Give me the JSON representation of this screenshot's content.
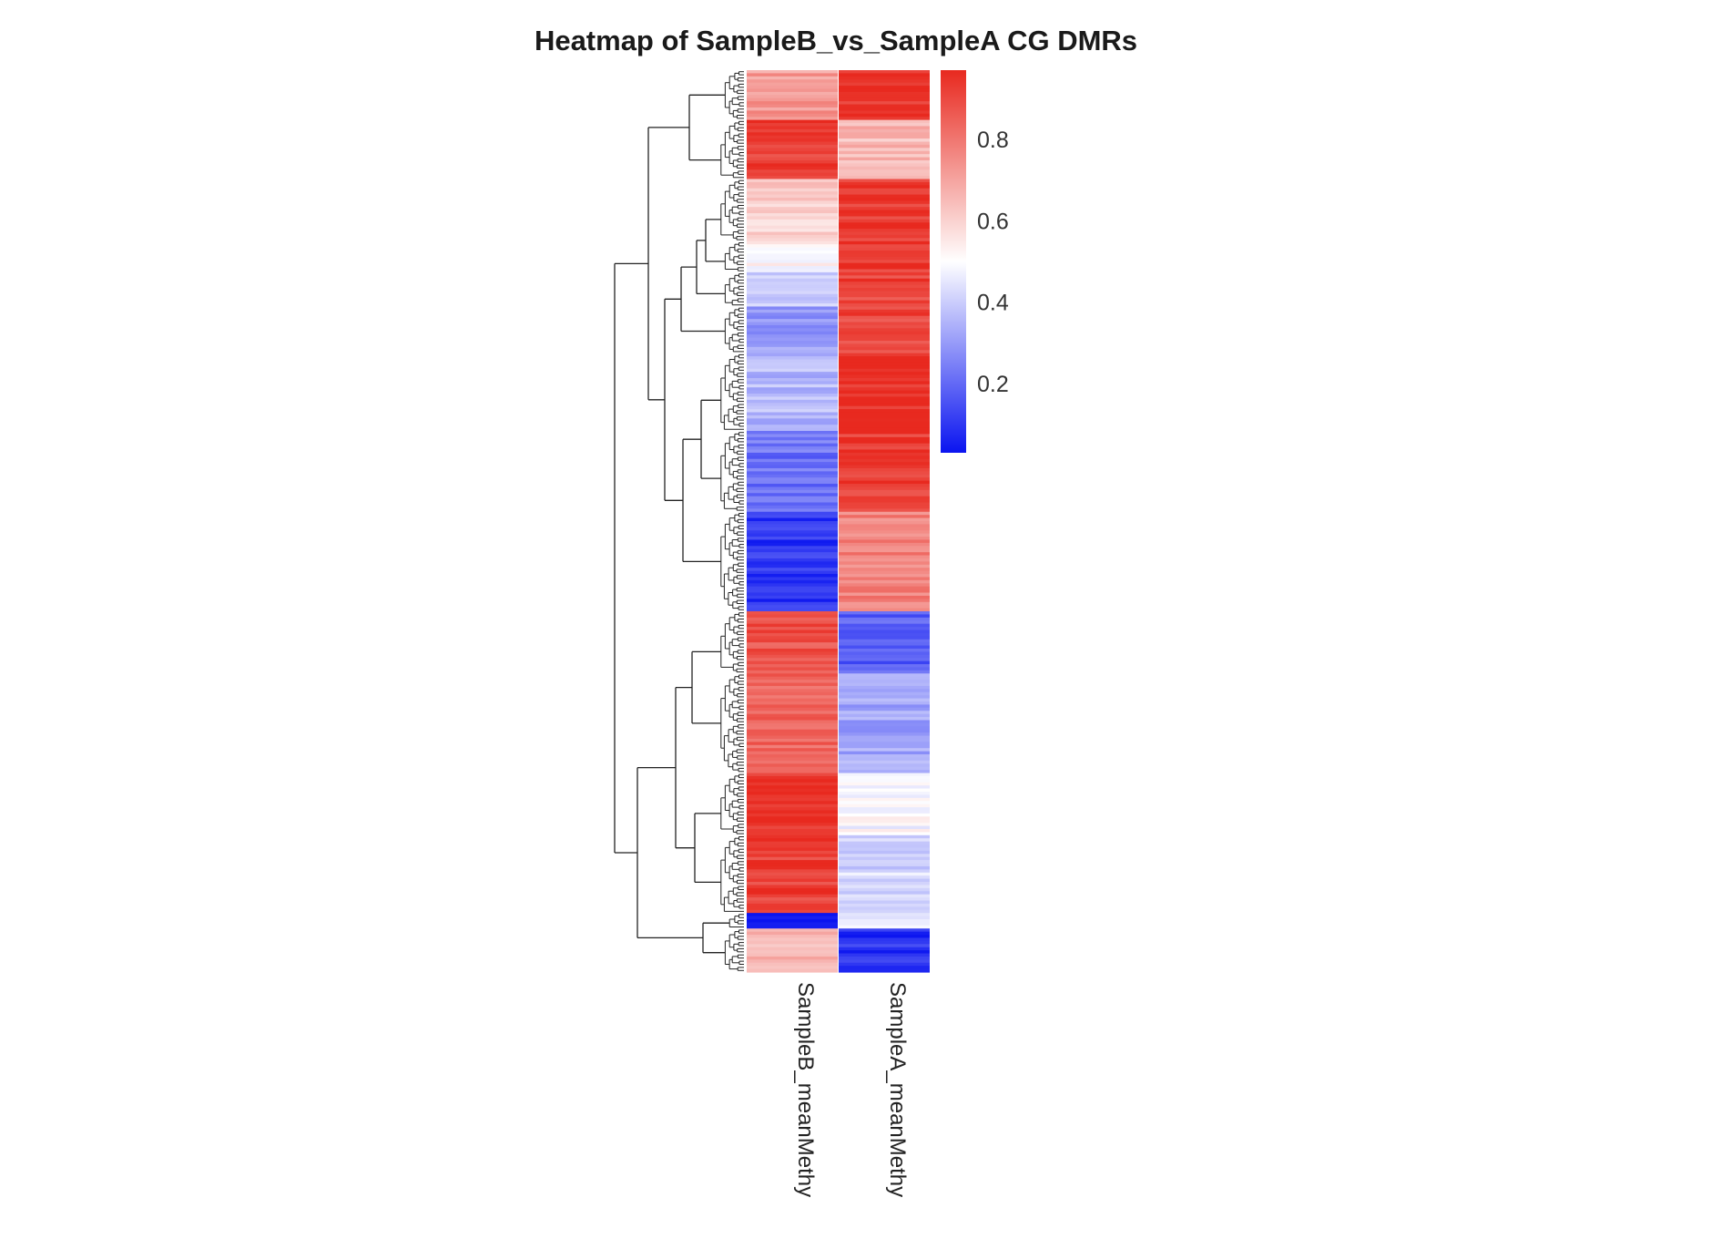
{
  "chart_data": {
    "type": "heatmap",
    "title": "Heatmap of SampleB_vs_SampleA CG DMRs",
    "columns": [
      "SampleB_meanMethy",
      "SampleA_meanMethy"
    ],
    "colorbar": {
      "min": 0.03,
      "max": 0.97,
      "ticks": [
        0.2,
        0.4,
        0.6,
        0.8
      ],
      "tick_labels": [
        "0.2",
        "0.4",
        "0.6",
        "0.8"
      ],
      "low_color": "#0a14f0",
      "mid_color": "#ffffff",
      "high_color": "#e8291f",
      "mid_value": 0.5
    },
    "dendrogram": "rows",
    "row_blocks": [
      {
        "rows": 16,
        "SampleB_meanMethy": 0.72,
        "SampleA_meanMethy": 0.95
      },
      {
        "rows": 19,
        "SampleB_meanMethy": 0.93,
        "SampleA_meanMethy": 0.65
      },
      {
        "rows": 20,
        "SampleB_meanMethy": 0.6,
        "SampleA_meanMethy": 0.93
      },
      {
        "rows": 10,
        "SampleB_meanMethy": 0.52,
        "SampleA_meanMethy": 0.92
      },
      {
        "rows": 11,
        "SampleB_meanMethy": 0.42,
        "SampleA_meanMethy": 0.91
      },
      {
        "rows": 15,
        "SampleB_meanMethy": 0.3,
        "SampleA_meanMethy": 0.9
      },
      {
        "rows": 25,
        "SampleB_meanMethy": 0.36,
        "SampleA_meanMethy": 0.96
      },
      {
        "rows": 26,
        "SampleB_meanMethy": 0.22,
        "SampleA_meanMethy": 0.93
      },
      {
        "rows": 32,
        "SampleB_meanMethy": 0.1,
        "SampleA_meanMethy": 0.77
      },
      {
        "rows": 20,
        "SampleB_meanMethy": 0.88,
        "SampleA_meanMethy": 0.18
      },
      {
        "rows": 32,
        "SampleB_meanMethy": 0.83,
        "SampleA_meanMethy": 0.32
      },
      {
        "rows": 20,
        "SampleB_meanMethy": 0.95,
        "SampleA_meanMethy": 0.49
      },
      {
        "rows": 25,
        "SampleB_meanMethy": 0.92,
        "SampleA_meanMethy": 0.42
      },
      {
        "rows": 5,
        "SampleB_meanMethy": 0.05,
        "SampleA_meanMethy": 0.49
      },
      {
        "rows": 14,
        "SampleB_meanMethy": 0.66,
        "SampleA_meanMethy": 0.09
      }
    ]
  }
}
